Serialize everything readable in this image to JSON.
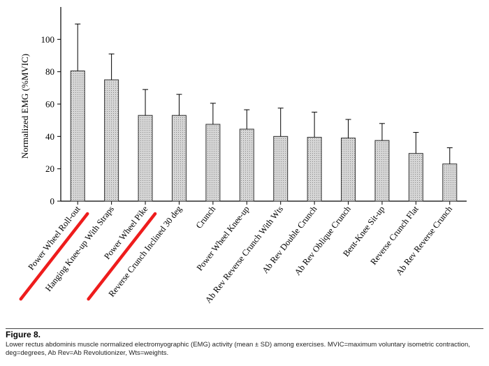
{
  "chart_data": {
    "type": "bar",
    "ylabel": "Normalized EMG (%MVIC)",
    "xlabel": "",
    "ylim": [
      0,
      120
    ],
    "yticks": [
      0,
      20,
      40,
      60,
      80,
      100
    ],
    "categories": [
      "Power Wheel Roll-out",
      "Hanging Knee-up With Straps",
      "Power Wheel Pike",
      "Reverse Crunch Inclined 30 deg",
      "Crunch",
      "Power Wheel Knee-up",
      "Ab Rev Reverse Crunch With Wts",
      "Ab Rev Double Crunch",
      "Ab Rev Oblique Crunch",
      "Bent-Knee Sit-up",
      "Reverse Crunch Flat",
      "Ab Rev Reverse Crunch"
    ],
    "values": [
      80.5,
      75,
      53,
      53,
      47.5,
      44.5,
      40,
      39.5,
      39,
      37.5,
      29.5,
      23
    ],
    "error_upper": [
      109.5,
      91,
      69,
      66,
      60.5,
      56.5,
      57.5,
      55,
      50.5,
      48,
      42.5,
      33
    ],
    "highlighted": [
      0,
      2
    ],
    "highlight_color": "#ee1c1c",
    "bar_fill": "#c8c8c8",
    "grid": false,
    "legend": "none"
  },
  "caption": {
    "title": "Figure 8.",
    "text": "Lower rectus abdominis muscle normalized electromyographic (EMG) activity (mean ± SD) among exercises. MVIC=maximum voluntary isometric contraction, deg=degrees, Ab Rev=Ab Revolutionizer, Wts=weights."
  }
}
